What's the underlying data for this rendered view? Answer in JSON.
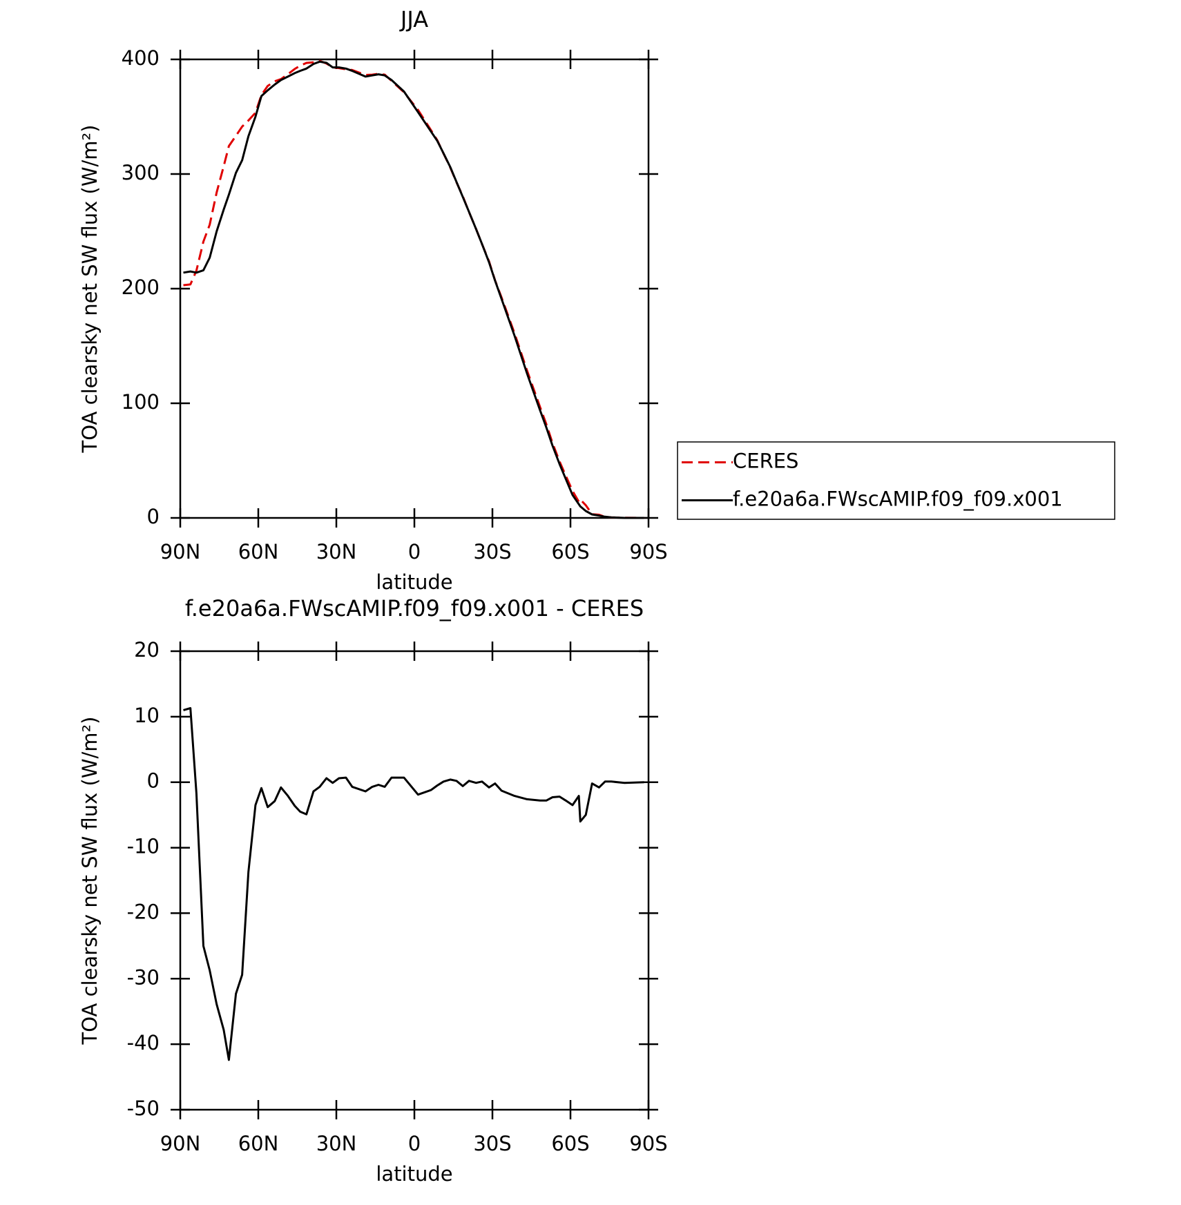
{
  "chart_data": [
    {
      "type": "line",
      "title": "JJA",
      "xlabel": "latitude",
      "ylabel": "TOA clearsky net SW flux (W/m²)",
      "xlim": [
        90,
        -90
      ],
      "ylim": [
        0,
        400
      ],
      "xticks": [
        {
          "value": 90,
          "label": "90N"
        },
        {
          "value": 60,
          "label": "60N"
        },
        {
          "value": 30,
          "label": "30N"
        },
        0,
        {
          "value": -30,
          "label": "30S"
        },
        {
          "value": -60,
          "label": "60S"
        },
        {
          "value": -90,
          "label": "90S"
        }
      ],
      "yticks": [
        0,
        100,
        200,
        300,
        400
      ],
      "legend": "outside-right",
      "x": [
        88.8,
        86.1,
        83.8,
        81.1,
        78.7,
        76,
        73.3,
        71.3,
        68.6,
        66.2,
        63.8,
        61.1,
        58.8,
        56.4,
        53.7,
        51.3,
        48.6,
        46,
        43.9,
        41.5,
        38.8,
        36.4,
        33.8,
        31.4,
        29,
        26.3,
        23.9,
        18.8,
        16.2,
        13.8,
        11.4,
        8.8,
        4,
        -1.4,
        -6.4,
        -8.8,
        -11.2,
        -13.8,
        -16.2,
        -18.6,
        -21,
        -23.7,
        -26,
        -28.7,
        -31,
        -33.5,
        -38.5,
        -43.3,
        -48.3,
        -50.7,
        -53.1,
        -55.8,
        -58.2,
        -60.8,
        -63.2,
        -63.8,
        -65.9,
        -68.3,
        -71,
        -73.3,
        -75.7,
        -80.8,
        -88.3
      ],
      "series": [
        {
          "name": "CERES",
          "color": "#e00000",
          "dash": "dashed",
          "values": [
            203,
            203.7,
            215.7,
            241,
            255.7,
            283.9,
            306.8,
            324.4,
            333.3,
            341.4,
            346.7,
            353.5,
            368.9,
            376.8,
            380.9,
            382.8,
            387.1,
            391.6,
            394.5,
            396.9,
            397.4,
            398.7,
            396.4,
            393.1,
            392.4,
            391.3,
            390.7,
            386.4,
            386.7,
            387.4,
            386.7,
            381.3,
            371.3,
            355.9,
            338.2,
            329.5,
            317.9,
            305.6,
            292.8,
            280.6,
            266.8,
            252.1,
            238.9,
            223.8,
            207.2,
            192.3,
            161.1,
            128.6,
            96.8,
            81.8,
            65.3,
            49.2,
            36.8,
            23.5,
            14.1,
            16,
            11,
            3.2,
            2.8,
            0.9,
            0.4,
            0.1,
            0
          ]
        },
        {
          "name": "f.e20a6a.FWscAMIP.f09_f09.x001",
          "color": "#000000",
          "dash": "solid",
          "values": [
            214,
            215,
            214,
            216,
            227,
            250,
            269,
            282,
            301,
            312,
            333,
            350,
            368,
            373,
            378,
            382,
            385,
            388,
            390,
            392,
            396,
            398,
            397,
            393,
            393,
            392,
            390,
            385,
            386,
            387,
            386,
            382,
            372,
            354,
            337,
            329,
            318,
            306,
            293,
            280,
            267,
            252,
            239,
            223,
            207,
            191,
            159,
            126,
            94,
            79,
            63,
            47,
            34,
            20,
            12,
            10,
            6,
            3,
            2,
            1,
            0.5,
            0,
            0
          ]
        }
      ]
    },
    {
      "type": "line",
      "title": "f.e20a6a.FWscAMIP.f09_f09.x001 - CERES",
      "xlabel": "latitude",
      "ylabel": "TOA clearsky net SW flux (W/m²)",
      "xlim": [
        90,
        -90
      ],
      "ylim": [
        -50,
        20
      ],
      "xticks": [
        {
          "value": 90,
          "label": "90N"
        },
        {
          "value": 60,
          "label": "60N"
        },
        {
          "value": 30,
          "label": "30N"
        },
        0,
        {
          "value": -30,
          "label": "30S"
        },
        {
          "value": -60,
          "label": "60S"
        },
        {
          "value": -90,
          "label": "90S"
        }
      ],
      "yticks": [
        -50,
        -40,
        -30,
        -20,
        -10,
        0,
        10,
        20
      ],
      "x": [
        88.8,
        86.1,
        83.8,
        81.1,
        78.7,
        76,
        73.3,
        71.3,
        68.6,
        66.2,
        63.8,
        61.1,
        58.8,
        56.4,
        53.7,
        51.3,
        48.6,
        46,
        43.9,
        41.5,
        38.8,
        36.4,
        33.8,
        31.4,
        29,
        26.3,
        23.9,
        18.8,
        16.2,
        13.8,
        11.4,
        8.8,
        4,
        -1.4,
        -6.4,
        -8.8,
        -11.2,
        -13.8,
        -16.2,
        -18.6,
        -21,
        -23.7,
        -26,
        -28.7,
        -31,
        -33.5,
        -38.5,
        -43.3,
        -48.3,
        -50.7,
        -53.1,
        -55.8,
        -58.2,
        -60.8,
        -63.2,
        -63.8,
        -65.9,
        -68.3,
        -71,
        -73.3,
        -75.7,
        -80.8,
        -88.3
      ],
      "series": [
        {
          "color": "#000000",
          "dash": "solid",
          "values": [
            11,
            11.3,
            -1.7,
            -25,
            -28.7,
            -33.9,
            -37.8,
            -42.4,
            -32.3,
            -29.4,
            -13.7,
            -3.5,
            -0.9,
            -3.8,
            -2.9,
            -0.8,
            -2.1,
            -3.6,
            -4.5,
            -4.9,
            -1.4,
            -0.7,
            0.6,
            -0.1,
            0.6,
            0.7,
            -0.7,
            -1.4,
            -0.7,
            -0.4,
            -0.7,
            0.7,
            0.7,
            -1.9,
            -1.2,
            -0.5,
            0.1,
            0.4,
            0.2,
            -0.6,
            0.2,
            -0.1,
            0.1,
            -0.8,
            -0.2,
            -1.3,
            -2.1,
            -2.6,
            -2.8,
            -2.8,
            -2.3,
            -2.2,
            -2.8,
            -3.5,
            -2.1,
            -6,
            -5,
            -0.2,
            -0.8,
            0.1,
            0.1,
            -0.1,
            0
          ]
        }
      ]
    }
  ]
}
